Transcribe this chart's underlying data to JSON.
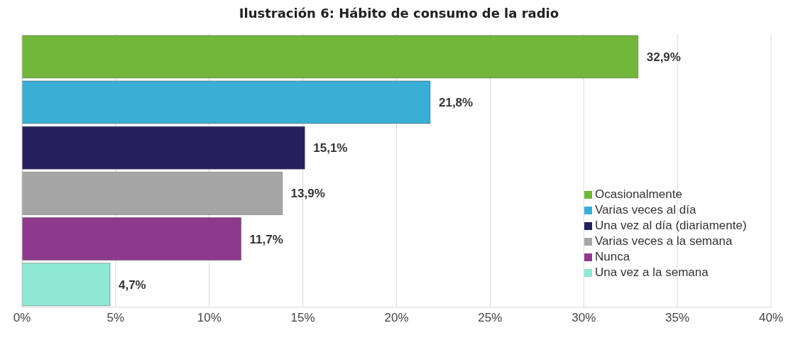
{
  "chart_data": {
    "type": "bar",
    "orientation": "horizontal",
    "stacked": true,
    "title": "Ilustración 6: Hábito de consumo de la radio",
    "categories": [
      null,
      null,
      null,
      null,
      null,
      null
    ],
    "series": [
      {
        "name": "Ocasionalmente",
        "color": "#72b63c",
        "values": [
          32.9,
          null,
          null,
          null,
          null,
          null
        ],
        "value_labels": [
          "32,9%",
          null,
          null,
          null,
          null,
          null
        ]
      },
      {
        "name": "Varias veces al día",
        "color": "#3aaed4",
        "values": [
          null,
          21.8,
          null,
          null,
          null,
          null
        ],
        "value_labels": [
          null,
          "21,8%",
          null,
          null,
          null,
          null
        ]
      },
      {
        "name": "Una vez al día (diariamente)",
        "color": "#25205e",
        "values": [
          null,
          null,
          15.1,
          null,
          null,
          null
        ],
        "value_labels": [
          null,
          null,
          "15,1%",
          null,
          null,
          null
        ]
      },
      {
        "name": "Varias veces a la semana",
        "color": "#a6a6a6",
        "values": [
          null,
          null,
          null,
          13.9,
          null,
          null
        ],
        "value_labels": [
          null,
          null,
          null,
          "13,9%",
          null,
          null
        ]
      },
      {
        "name": "Nunca",
        "color": "#8e3a8c",
        "values": [
          null,
          null,
          null,
          null,
          11.7,
          null
        ],
        "value_labels": [
          null,
          null,
          null,
          null,
          "11,7%",
          null
        ]
      },
      {
        "name": "Una vez a la semana",
        "color": "#8ee8d4",
        "values": [
          null,
          null,
          null,
          null,
          null,
          4.7
        ],
        "value_labels": [
          null,
          null,
          null,
          null,
          null,
          "4,7%"
        ]
      }
    ],
    "xlim": [
      0,
      40
    ],
    "xticks": [
      {
        "value": 0,
        "label": "0%"
      },
      {
        "value": 5,
        "label": "5%"
      },
      {
        "value": 10,
        "label": "10%"
      },
      {
        "value": 15,
        "label": "15%"
      },
      {
        "value": 20,
        "label": "20%"
      },
      {
        "value": 25,
        "label": "25%"
      },
      {
        "value": 30,
        "label": "30%"
      },
      {
        "value": 35,
        "label": "35%"
      },
      {
        "value": 40,
        "label": "40%"
      }
    ],
    "grid": "x",
    "legend": "bottom right",
    "tick_labels": "x"
  }
}
